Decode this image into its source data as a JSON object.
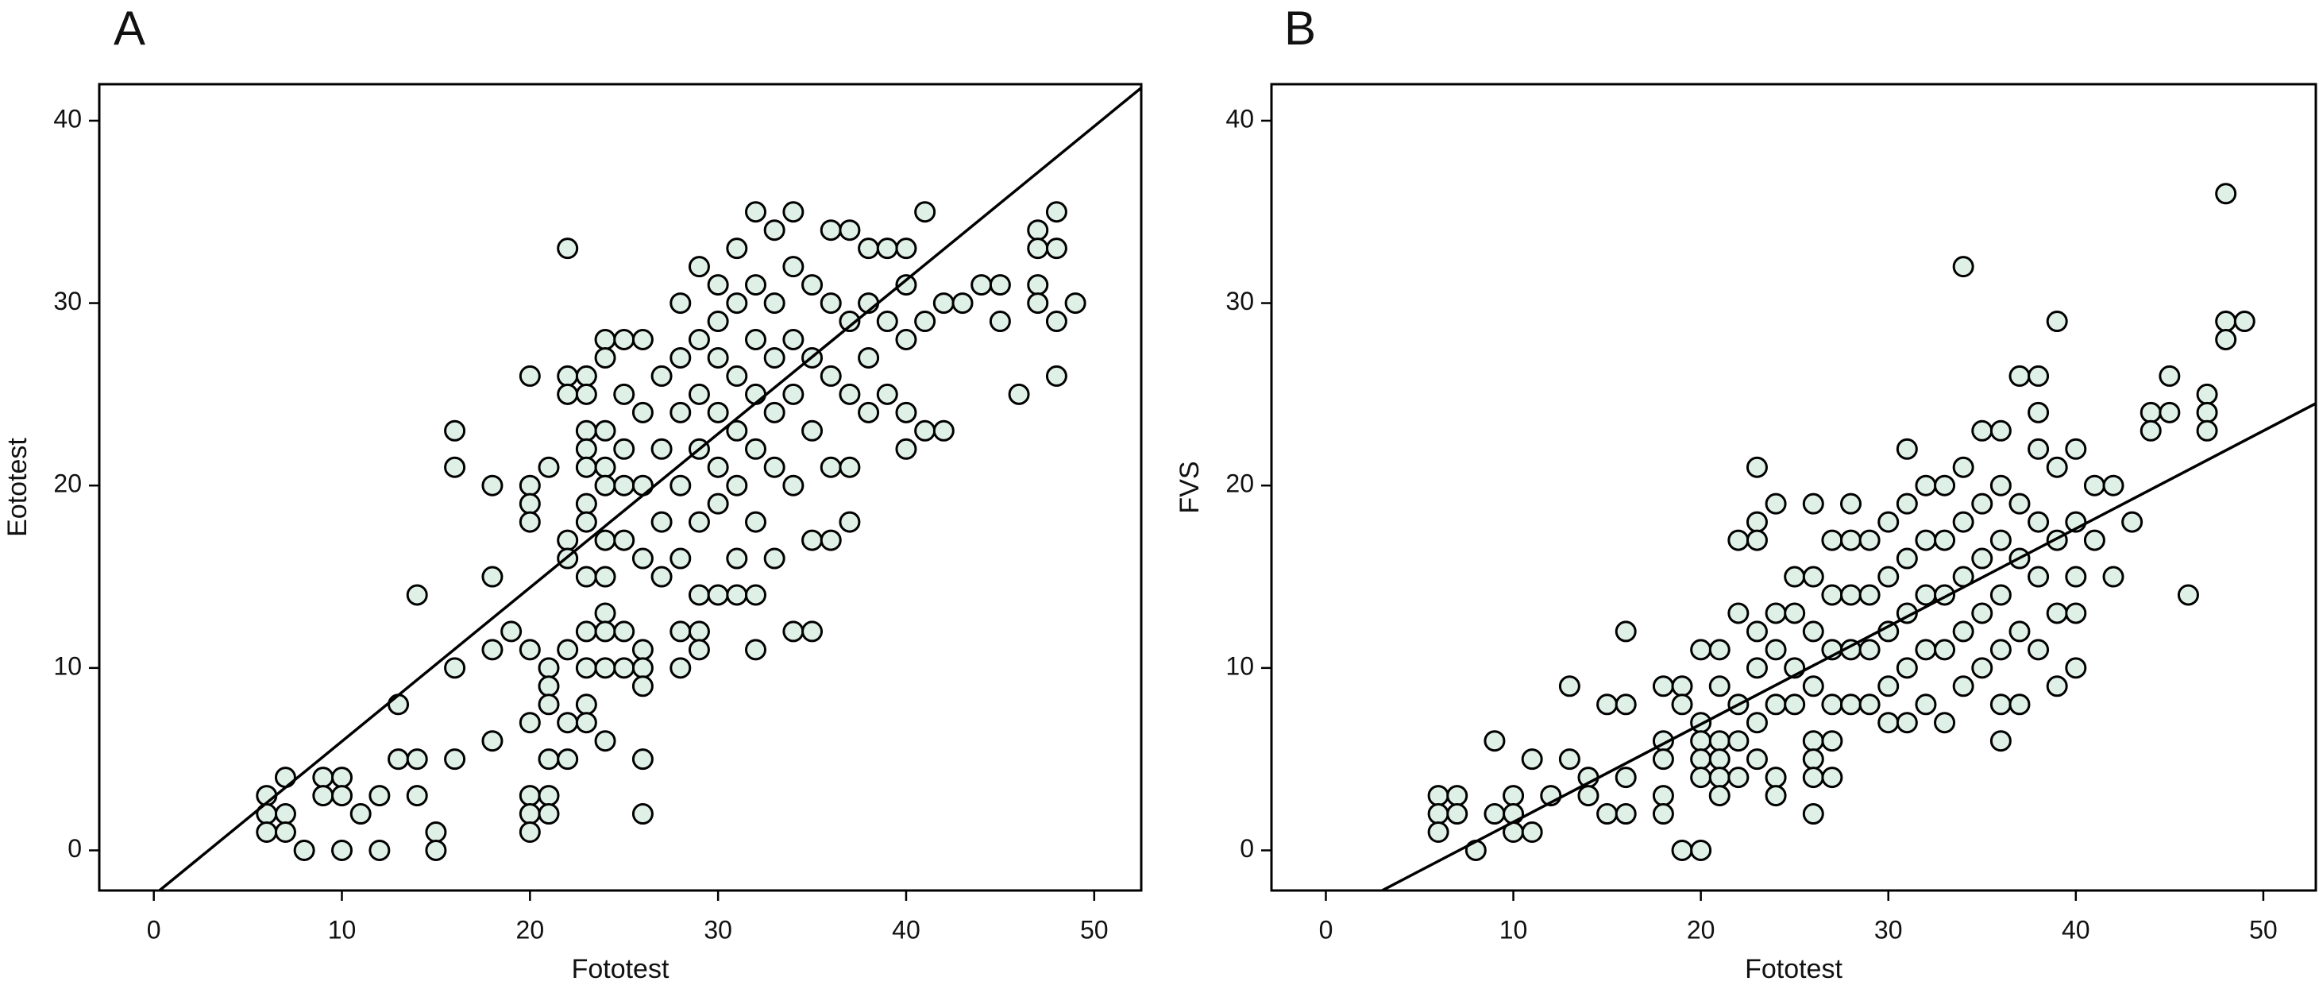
{
  "chart_data": [
    {
      "type": "scatter",
      "title": "A",
      "x_label": "Fototest",
      "y_label": "Eototest",
      "color": "#dff1e7",
      "line_color": "#000000",
      "xlim": [
        -2.9,
        52.5
      ],
      "ylim": [
        -2.2,
        42
      ],
      "xticks": [
        0,
        10,
        20,
        30,
        40,
        50
      ],
      "yticks": [
        0,
        10,
        20,
        30,
        40
      ],
      "line": {
        "x": [
          0.3,
          52.5
        ],
        "y": [
          -2.2,
          41.8
        ]
      },
      "x": [
        6,
        6,
        6,
        7,
        7,
        7,
        8,
        9,
        9,
        10,
        10,
        10,
        11,
        12,
        12,
        13,
        13,
        14,
        14,
        14,
        15,
        15,
        16,
        16,
        16,
        16,
        18,
        18,
        18,
        18,
        19,
        20,
        20,
        20,
        20,
        20,
        20,
        20,
        20,
        20,
        21,
        21,
        21,
        21,
        21,
        21,
        21,
        22,
        22,
        22,
        22,
        22,
        22,
        22,
        22,
        23,
        23,
        23,
        23,
        23,
        23,
        23,
        23,
        23,
        23,
        23,
        23,
        24,
        24,
        24,
        24,
        24,
        24,
        24,
        24,
        24,
        24,
        24,
        25,
        25,
        25,
        25,
        25,
        25,
        25,
        26,
        26,
        26,
        26,
        26,
        26,
        26,
        26,
        26,
        27,
        27,
        27,
        27,
        28,
        28,
        28,
        28,
        28,
        28,
        28,
        29,
        29,
        29,
        29,
        29,
        29,
        29,
        29,
        30,
        30,
        30,
        30,
        30,
        30,
        30,
        31,
        31,
        31,
        31,
        31,
        31,
        31,
        32,
        32,
        32,
        32,
        32,
        32,
        32,
        32,
        33,
        33,
        33,
        33,
        33,
        33,
        34,
        34,
        34,
        34,
        34,
        34,
        35,
        35,
        35,
        35,
        35,
        36,
        36,
        36,
        36,
        36,
        37,
        37,
        37,
        37,
        37,
        38,
        38,
        38,
        38,
        39,
        39,
        39,
        40,
        40,
        40,
        40,
        40,
        41,
        41,
        41,
        42,
        42,
        43,
        44,
        45,
        45,
        46,
        47,
        47,
        47,
        47,
        48,
        48,
        48,
        48,
        49
      ],
      "y": [
        3,
        2,
        1,
        4,
        2,
        1,
        0,
        4,
        3,
        4,
        3,
        0,
        2,
        3,
        0,
        8,
        5,
        5,
        3,
        14,
        1,
        0,
        23,
        21,
        10,
        5,
        20,
        15,
        11,
        6,
        12,
        26,
        20,
        19,
        18,
        11,
        7,
        3,
        2,
        1,
        21,
        10,
        9,
        8,
        5,
        3,
        2,
        33,
        26,
        25,
        17,
        16,
        11,
        7,
        5,
        26,
        25,
        23,
        22,
        21,
        19,
        18,
        15,
        12,
        10,
        8,
        7,
        28,
        27,
        23,
        21,
        20,
        17,
        15,
        13,
        12,
        10,
        6,
        28,
        25,
        22,
        20,
        17,
        12,
        10,
        28,
        24,
        20,
        16,
        11,
        10,
        9,
        5,
        2,
        26,
        22,
        18,
        15,
        30,
        27,
        24,
        20,
        16,
        12,
        10,
        32,
        28,
        25,
        22,
        18,
        14,
        12,
        11,
        31,
        29,
        27,
        24,
        21,
        19,
        14,
        33,
        30,
        26,
        23,
        20,
        16,
        14,
        35,
        31,
        28,
        25,
        22,
        18,
        14,
        11,
        34,
        30,
        27,
        24,
        21,
        16,
        35,
        32,
        28,
        25,
        20,
        12,
        31,
        27,
        23,
        17,
        12,
        34,
        30,
        26,
        21,
        17,
        34,
        29,
        25,
        21,
        18,
        33,
        30,
        27,
        24,
        33,
        29,
        25,
        33,
        31,
        28,
        24,
        22,
        35,
        29,
        23,
        30,
        23,
        30,
        31,
        31,
        29,
        25,
        34,
        33,
        31,
        30,
        35,
        33,
        29,
        26,
        30
      ]
    },
    {
      "type": "scatter",
      "title": "B",
      "x_label": "Fototest",
      "y_label": "FVS",
      "color": "#dff1e7",
      "line_color": "#000000",
      "xlim": [
        -2.9,
        52.8
      ],
      "ylim": [
        -2.2,
        42
      ],
      "xticks": [
        0,
        10,
        20,
        30,
        40,
        50
      ],
      "yticks": [
        0,
        10,
        20,
        30,
        40
      ],
      "line": {
        "x": [
          3,
          52.8
        ],
        "y": [
          -2.2,
          24.5
        ]
      },
      "x": [
        6,
        6,
        6,
        7,
        7,
        8,
        9,
        9,
        10,
        10,
        10,
        11,
        11,
        12,
        13,
        13,
        14,
        14,
        15,
        15,
        16,
        16,
        16,
        16,
        18,
        18,
        18,
        18,
        18,
        19,
        19,
        19,
        20,
        20,
        20,
        20,
        20,
        20,
        21,
        21,
        21,
        21,
        21,
        21,
        22,
        22,
        22,
        22,
        22,
        23,
        23,
        23,
        23,
        23,
        23,
        23,
        24,
        24,
        24,
        24,
        24,
        24,
        25,
        25,
        25,
        25,
        26,
        26,
        26,
        26,
        26,
        26,
        26,
        26,
        27,
        27,
        27,
        27,
        27,
        27,
        28,
        28,
        28,
        28,
        28,
        29,
        29,
        29,
        29,
        30,
        30,
        30,
        30,
        30,
        31,
        31,
        31,
        31,
        31,
        31,
        32,
        32,
        32,
        32,
        32,
        33,
        33,
        33,
        33,
        33,
        34,
        34,
        34,
        34,
        34,
        34,
        35,
        35,
        35,
        35,
        35,
        36,
        36,
        36,
        36,
        36,
        36,
        36,
        37,
        37,
        37,
        37,
        37,
        38,
        38,
        38,
        38,
        38,
        38,
        39,
        39,
        39,
        39,
        39,
        40,
        40,
        40,
        40,
        40,
        41,
        41,
        42,
        42,
        43,
        44,
        44,
        45,
        45,
        46,
        47,
        47,
        47,
        48,
        48,
        48,
        49
      ],
      "y": [
        3,
        2,
        1,
        3,
        2,
        0,
        6,
        2,
        3,
        2,
        1,
        5,
        1,
        3,
        9,
        5,
        4,
        3,
        8,
        2,
        12,
        8,
        4,
        2,
        9,
        6,
        5,
        3,
        2,
        9,
        8,
        0,
        11,
        7,
        6,
        5,
        4,
        0,
        11,
        9,
        6,
        5,
        4,
        3,
        17,
        13,
        8,
        6,
        4,
        21,
        18,
        17,
        12,
        10,
        7,
        5,
        19,
        13,
        11,
        8,
        4,
        3,
        15,
        13,
        10,
        8,
        19,
        15,
        12,
        9,
        6,
        5,
        4,
        2,
        17,
        14,
        11,
        8,
        6,
        4,
        19,
        17,
        14,
        11,
        8,
        17,
        14,
        11,
        8,
        18,
        15,
        12,
        9,
        7,
        22,
        19,
        16,
        13,
        10,
        7,
        20,
        17,
        14,
        11,
        8,
        20,
        17,
        14,
        11,
        7,
        32,
        21,
        18,
        15,
        12,
        9,
        23,
        19,
        16,
        13,
        10,
        23,
        20,
        17,
        14,
        11,
        8,
        6,
        26,
        19,
        16,
        12,
        8,
        26,
        24,
        22,
        18,
        15,
        11,
        29,
        21,
        17,
        13,
        9,
        22,
        18,
        15,
        13,
        10,
        20,
        17,
        20,
        15,
        18,
        24,
        23,
        26,
        24,
        14,
        25,
        24,
        23,
        36,
        29,
        28,
        29
      ]
    }
  ]
}
